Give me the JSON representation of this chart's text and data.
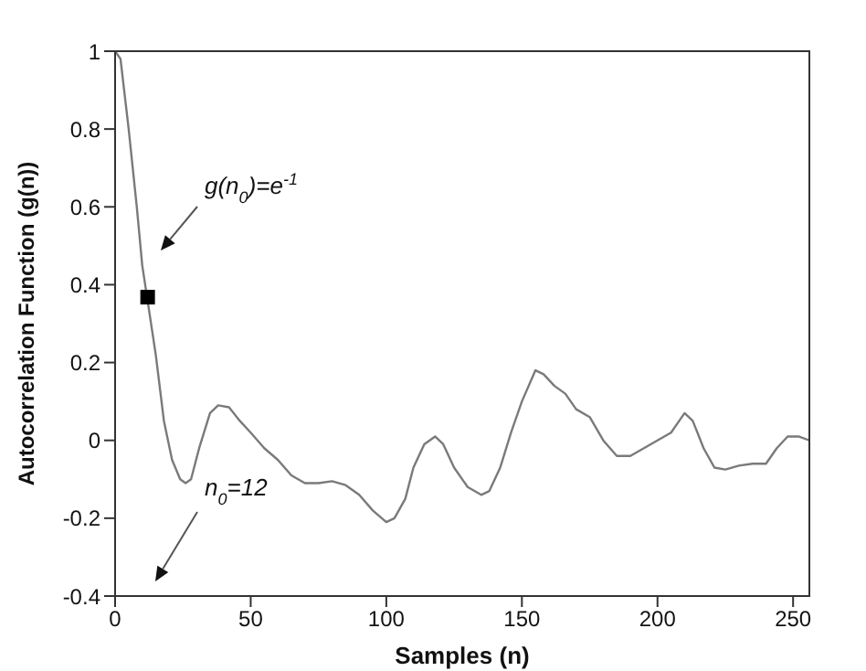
{
  "chart_data": {
    "type": "line",
    "xlabel": "Samples (n)",
    "ylabel": "Autocorrelation Function (g(n))",
    "xlim": [
      0,
      256
    ],
    "xticks": [
      0,
      50,
      100,
      150,
      200,
      250
    ],
    "ylim": [
      -0.4,
      1
    ],
    "yticks": [
      -0.4,
      -0.2,
      0,
      0.2,
      0.4,
      0.6,
      0.8,
      1
    ],
    "grid": false,
    "legend": false,
    "series": [
      {
        "color": "#7a7a7a",
        "marker": "none",
        "x": [
          0,
          2,
          5,
          8,
          10,
          15,
          18,
          21,
          24,
          26,
          28,
          31,
          35,
          38,
          42,
          46,
          50,
          55,
          60,
          65,
          70,
          75,
          80,
          85,
          90,
          95,
          100,
          103,
          107,
          110,
          114,
          118,
          121,
          125,
          130,
          135,
          138,
          142,
          146,
          150,
          155,
          158,
          162,
          166,
          170,
          175,
          180,
          185,
          190,
          195,
          200,
          205,
          208,
          210,
          213,
          217,
          221,
          225,
          230,
          235,
          240,
          244,
          248,
          252,
          256
        ],
        "values": [
          1,
          0.98,
          0.8,
          0.6,
          0.45,
          0.22,
          0.05,
          -0.05,
          -0.1,
          -0.11,
          -0.1,
          -0.02,
          0.07,
          0.09,
          0.085,
          0.05,
          0.02,
          -0.02,
          -0.05,
          -0.09,
          -0.11,
          -0.11,
          -0.105,
          -0.115,
          -0.14,
          -0.18,
          -0.21,
          -0.2,
          -0.15,
          -0.07,
          -0.01,
          0.01,
          -0.01,
          -0.07,
          -0.12,
          -0.14,
          -0.13,
          -0.07,
          0.02,
          0.1,
          0.18,
          0.17,
          0.14,
          0.12,
          0.08,
          0.06,
          0,
          -0.04,
          -0.04,
          -0.02,
          0,
          0.02,
          0.05,
          0.07,
          0.05,
          -0.02,
          -0.07,
          -0.075,
          -0.065,
          -0.06,
          -0.06,
          -0.02,
          0.01,
          0.01,
          0
        ]
      },
      {
        "type": "scatter",
        "color": "#000000",
        "marker": "square",
        "x": [
          12
        ],
        "values": [
          0.368
        ]
      }
    ],
    "annotations": [
      "g(n$_{0}$)=e$^{-1}$",
      "n$_{0}$=12"
    ]
  }
}
